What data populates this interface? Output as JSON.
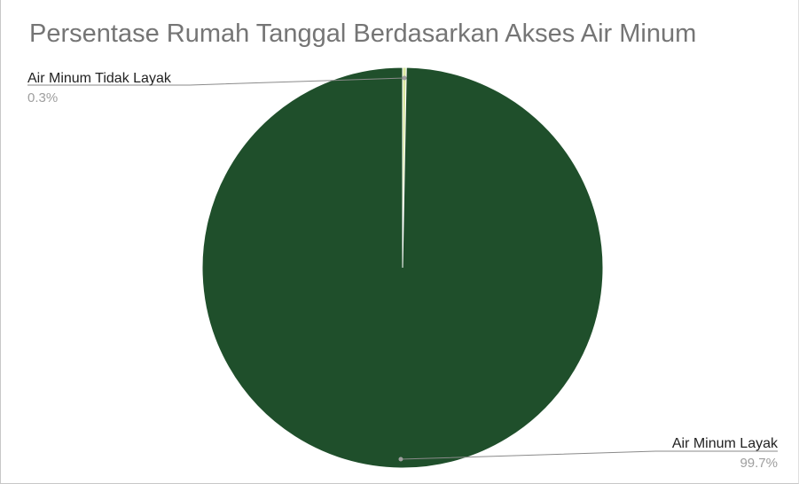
{
  "chart_data": {
    "type": "pie",
    "title": "Persentase Rumah Tanggal Berdasarkan Akses Air Minum",
    "slices": [
      {
        "label": "Air Minum Tidak Layak",
        "value": 0.3,
        "display": "0.3%",
        "color": "#d9e8a0"
      },
      {
        "label": "Air Minum Layak",
        "value": 99.7,
        "display": "99.7%",
        "color": "#1f4f2b"
      }
    ],
    "legend": "callout-labels"
  }
}
